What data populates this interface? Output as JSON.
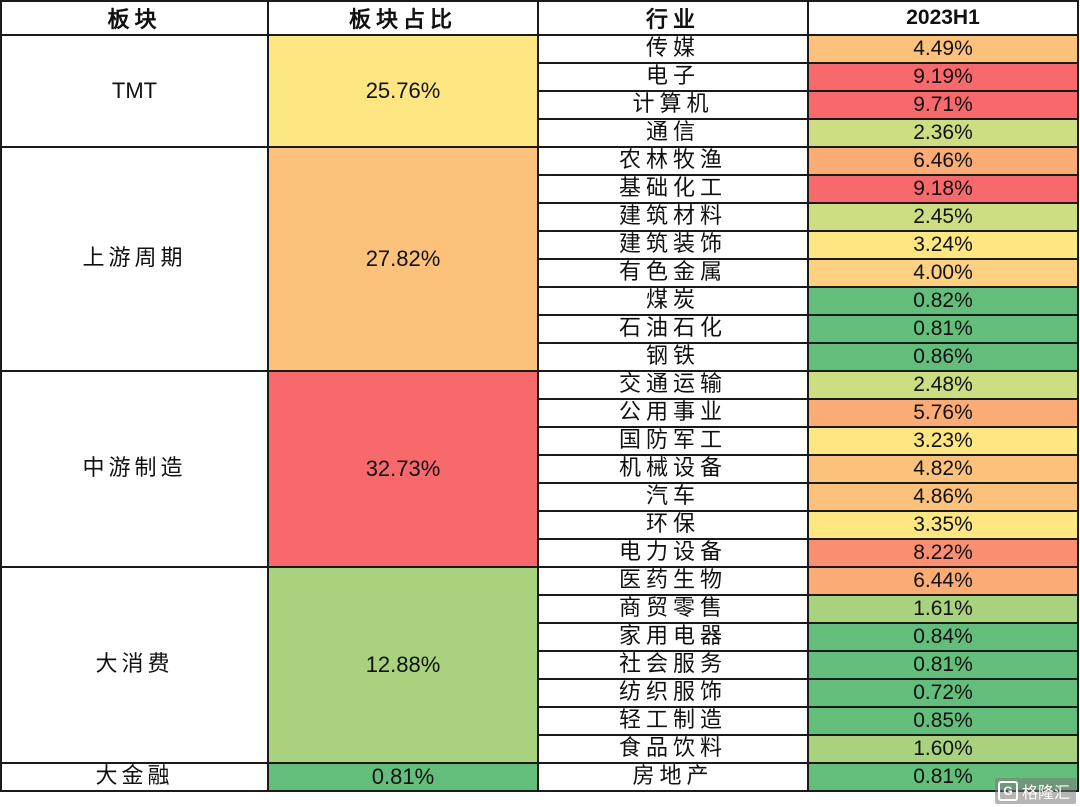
{
  "headers": {
    "sector": "板块",
    "share": "板块占比",
    "industry": "行业",
    "period": "2023H1"
  },
  "colors": {
    "red": "#f8696b",
    "orange_red": "#f98f70",
    "orange": "#fbac75",
    "light_orange": "#fcc27c",
    "yellow": "#fee783",
    "yellow_green": "#cddd82",
    "light_green": "#a8d27e",
    "green": "#63be7b"
  },
  "sectors": [
    {
      "name": "TMT",
      "share": "25.76%",
      "color": "#fee783",
      "latin": true,
      "industries": [
        {
          "name": "传媒",
          "value": "4.49%",
          "color": "#fcc27c"
        },
        {
          "name": "电子",
          "value": "9.19%",
          "color": "#f8696b"
        },
        {
          "name": "计算机",
          "value": "9.71%",
          "color": "#f8696b"
        },
        {
          "name": "通信",
          "value": "2.36%",
          "color": "#cddd82"
        }
      ]
    },
    {
      "name": "上游周期",
      "share": "27.82%",
      "color": "#fcc27c",
      "latin": false,
      "industries": [
        {
          "name": "农林牧渔",
          "value": "6.46%",
          "color": "#fbac75"
        },
        {
          "name": "基础化工",
          "value": "9.18%",
          "color": "#f8696b"
        },
        {
          "name": "建筑材料",
          "value": "2.45%",
          "color": "#cddd82"
        },
        {
          "name": "建筑装饰",
          "value": "3.24%",
          "color": "#fee783"
        },
        {
          "name": "有色金属",
          "value": "4.00%",
          "color": "#fdd17f"
        },
        {
          "name": "煤炭",
          "value": "0.82%",
          "color": "#63be7b"
        },
        {
          "name": "石油石化",
          "value": "0.81%",
          "color": "#63be7b"
        },
        {
          "name": "钢铁",
          "value": "0.86%",
          "color": "#63be7b"
        }
      ]
    },
    {
      "name": "中游制造",
      "share": "32.73%",
      "color": "#f8696b",
      "latin": false,
      "industries": [
        {
          "name": "交通运输",
          "value": "2.48%",
          "color": "#cddd82"
        },
        {
          "name": "公用事业",
          "value": "5.76%",
          "color": "#fbac75"
        },
        {
          "name": "国防军工",
          "value": "3.23%",
          "color": "#fee783"
        },
        {
          "name": "机械设备",
          "value": "4.82%",
          "color": "#fcc27c"
        },
        {
          "name": "汽车",
          "value": "4.86%",
          "color": "#fcc27c"
        },
        {
          "name": "环保",
          "value": "3.35%",
          "color": "#fee783"
        },
        {
          "name": "电力设备",
          "value": "8.22%",
          "color": "#f98f70"
        }
      ]
    },
    {
      "name": "大消费",
      "share": "12.88%",
      "color": "#a8d27e",
      "latin": false,
      "industries": [
        {
          "name": "医药生物",
          "value": "6.44%",
          "color": "#fbac75"
        },
        {
          "name": "商贸零售",
          "value": "1.61%",
          "color": "#a8d27e"
        },
        {
          "name": "家用电器",
          "value": "0.84%",
          "color": "#63be7b"
        },
        {
          "name": "社会服务",
          "value": "0.81%",
          "color": "#63be7b"
        },
        {
          "name": "纺织服饰",
          "value": "0.72%",
          "color": "#63be7b"
        },
        {
          "name": "轻工制造",
          "value": "0.85%",
          "color": "#63be7b"
        },
        {
          "name": "食品饮料",
          "value": "1.60%",
          "color": "#a8d27e"
        }
      ]
    },
    {
      "name": "大金融",
      "share": "0.81%",
      "color": "#63be7b",
      "latin": false,
      "industries": [
        {
          "name": "房地产",
          "value": "0.81%",
          "color": "#63be7b"
        }
      ]
    }
  ],
  "watermark": {
    "text": "格隆汇",
    "logo_letter": "G"
  }
}
